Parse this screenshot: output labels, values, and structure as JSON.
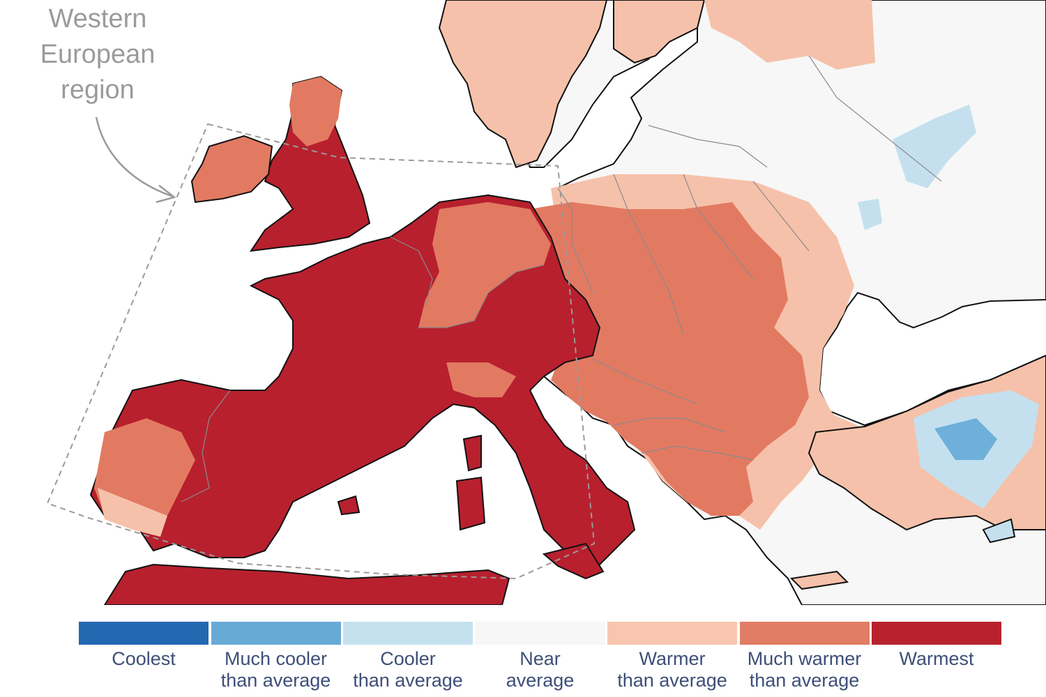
{
  "map": {
    "region_label": "Western\nEuropean\nregion",
    "colors": {
      "warmest": "#b8202e",
      "much_warmer": "#e27a62",
      "warmer": "#f6c1aa",
      "near": "#f7f7f7",
      "cooler": "#c4e0ef",
      "much_cooler": "#6eb0d9",
      "coolest": "#2874b6",
      "sea": "#ffffff",
      "outline": "#111111",
      "border": "#8a8a8a",
      "box": "#9a9a9a"
    }
  },
  "legend": {
    "items": [
      {
        "label": "Coolest",
        "color": "#2369b1"
      },
      {
        "label": "Much cooler\nthan average",
        "color": "#67aad6"
      },
      {
        "label": "Cooler\nthan average",
        "color": "#c5e1ef"
      },
      {
        "label": "Near\naverage",
        "color": "#f7f7f7"
      },
      {
        "label": "Warmer\nthan average",
        "color": "#f8c6ae"
      },
      {
        "label": "Much warmer\nthan average",
        "color": "#e07d64"
      },
      {
        "label": "Warmest",
        "color": "#b8222e"
      }
    ]
  }
}
